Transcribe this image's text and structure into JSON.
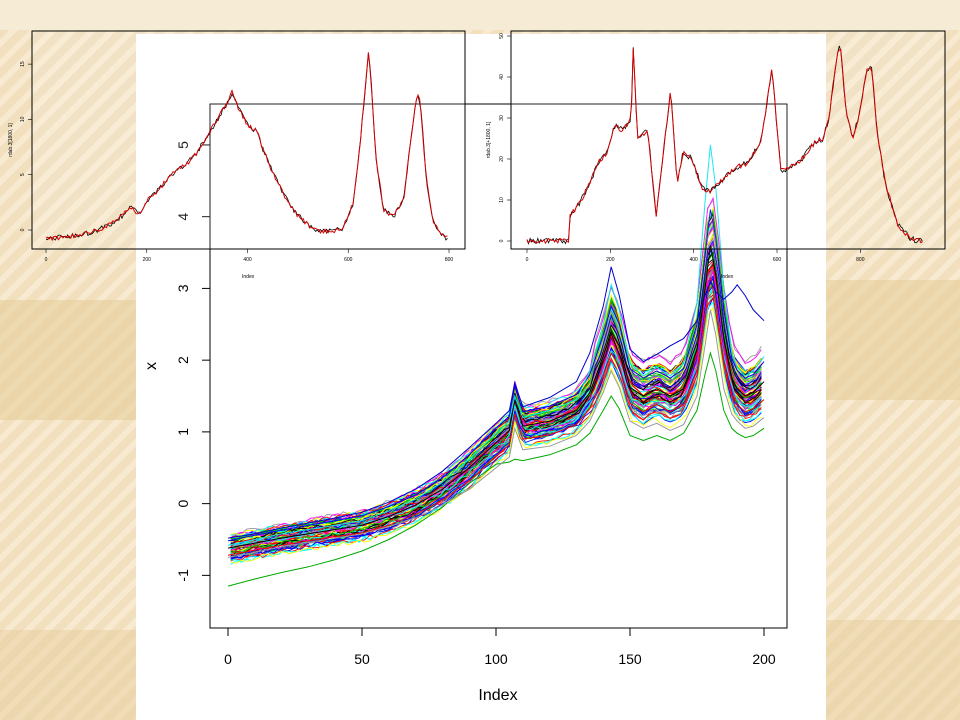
{
  "colors": {
    "slide_background": "#f3e3c3",
    "inset_line": "#d40000",
    "inset_overlay": "#000000",
    "main_series_palette": [
      "#000000",
      "#ff0000",
      "#00cc00",
      "#0000ff",
      "#00ffff",
      "#ff00ff",
      "#ffff00",
      "#999999"
    ]
  },
  "chart_data": [
    {
      "id": "main",
      "type": "line",
      "xlabel": "Index",
      "ylabel": "x",
      "xlim": [
        0,
        200
      ],
      "ylim": [
        -1.4,
        5.5
      ],
      "xticks": [
        0,
        50,
        100,
        150,
        200
      ],
      "yticks": [
        -1,
        0,
        1,
        2,
        3,
        4,
        5
      ],
      "grid": false,
      "legend": "none",
      "series_count": 100,
      "x": [
        0,
        10,
        20,
        30,
        40,
        50,
        60,
        70,
        80,
        90,
        100,
        105,
        107,
        110,
        120,
        130,
        135,
        140,
        143,
        146,
        150,
        155,
        160,
        165,
        170,
        175,
        178,
        180,
        182,
        185,
        188,
        190,
        193,
        196,
        200
      ],
      "series": [
        {
          "values": [
            -0.62,
            -0.55,
            -0.48,
            -0.42,
            -0.36,
            -0.3,
            -0.18,
            -0.02,
            0.2,
            0.5,
            0.85,
            1.02,
            1.45,
            1.08,
            1.15,
            1.3,
            1.55,
            2.05,
            2.4,
            2.2,
            1.62,
            1.5,
            1.6,
            1.5,
            1.6,
            2.15,
            3.0,
            3.6,
            3.2,
            2.3,
            1.75,
            1.6,
            1.5,
            1.55,
            1.7
          ]
        },
        {
          "values": [
            -0.52,
            -0.44,
            -0.37,
            -0.3,
            -0.24,
            -0.17,
            -0.04,
            0.12,
            0.36,
            0.68,
            1.05,
            1.22,
            1.65,
            1.28,
            1.36,
            1.52,
            1.8,
            2.35,
            2.75,
            2.5,
            1.88,
            1.75,
            1.85,
            1.75,
            1.88,
            2.5,
            3.45,
            4.1,
            3.7,
            2.7,
            2.02,
            1.86,
            1.75,
            1.8,
            1.98
          ]
        },
        {
          "values": [
            -0.72,
            -0.65,
            -0.58,
            -0.52,
            -0.46,
            -0.41,
            -0.3,
            -0.15,
            0.05,
            0.32,
            0.66,
            0.82,
            1.25,
            0.9,
            0.96,
            1.1,
            1.32,
            1.78,
            2.1,
            1.92,
            1.4,
            1.28,
            1.38,
            1.28,
            1.38,
            1.85,
            2.6,
            3.15,
            2.8,
            2.0,
            1.52,
            1.38,
            1.28,
            1.32,
            1.45
          ]
        },
        {
          "values": [
            -1.15,
            -1.05,
            -0.96,
            -0.88,
            -0.78,
            -0.66,
            -0.5,
            -0.3,
            -0.05,
            0.28,
            0.55,
            0.58,
            0.62,
            0.6,
            0.68,
            0.82,
            0.98,
            1.3,
            1.5,
            1.32,
            0.95,
            0.88,
            0.95,
            0.88,
            0.98,
            1.3,
            1.8,
            2.1,
            1.85,
            1.3,
            1.05,
            0.98,
            0.92,
            0.95,
            1.05
          ]
        },
        {
          "values": [
            -0.58,
            -0.5,
            -0.42,
            -0.36,
            -0.3,
            -0.24,
            -0.1,
            0.06,
            0.3,
            0.62,
            0.98,
            1.15,
            1.5,
            1.2,
            1.3,
            1.45,
            1.85,
            2.5,
            3.05,
            2.7,
            1.95,
            1.78,
            1.9,
            1.78,
            1.95,
            2.8,
            4.2,
            5.0,
            4.4,
            3.0,
            2.1,
            1.9,
            1.78,
            1.85,
            2.05
          ]
        },
        {
          "values": [
            -0.48,
            -0.42,
            -0.34,
            -0.27,
            -0.2,
            -0.12,
            0.02,
            0.2,
            0.45,
            0.78,
            1.12,
            1.3,
            1.68,
            1.35,
            1.48,
            1.7,
            2.1,
            2.75,
            3.3,
            2.9,
            2.15,
            1.98,
            2.08,
            2.2,
            2.3,
            2.55,
            2.9,
            3.1,
            2.95,
            2.85,
            2.95,
            3.05,
            2.9,
            2.7,
            2.55
          ]
        },
        {
          "values": [
            -0.75,
            -0.68,
            -0.6,
            -0.54,
            -0.48,
            -0.42,
            -0.32,
            -0.2,
            -0.02,
            0.2,
            0.5,
            0.65,
            1.05,
            0.75,
            0.8,
            0.95,
            1.15,
            1.55,
            1.85,
            1.62,
            1.15,
            1.05,
            1.12,
            1.02,
            1.1,
            1.5,
            2.2,
            2.7,
            2.35,
            1.6,
            1.25,
            1.15,
            1.05,
            1.08,
            1.2
          ]
        }
      ]
    },
    {
      "id": "inset-left",
      "type": "line",
      "ylabel": "rdab.3[1800, 1]",
      "xlabel": "Index",
      "xlim": [
        0,
        800
      ],
      "ylim": [
        0,
        17
      ],
      "xticks": [
        0,
        200,
        400,
        600,
        800
      ],
      "yticks": [
        0,
        5,
        10,
        15
      ],
      "x": [
        0,
        40,
        80,
        120,
        140,
        155,
        170,
        180,
        190,
        200,
        220,
        240,
        260,
        280,
        300,
        320,
        340,
        350,
        360,
        370,
        380,
        390,
        400,
        410,
        420,
        430,
        450,
        470,
        490,
        510,
        530,
        550,
        570,
        590,
        610,
        625,
        635,
        640,
        645,
        655,
        670,
        690,
        710,
        725,
        735,
        740,
        745,
        755,
        770,
        790,
        800
      ],
      "values": [
        -0.8,
        -0.6,
        -0.3,
        0.3,
        0.8,
        1.5,
        2.1,
        1.6,
        1.7,
        2.6,
        3.5,
        4.5,
        5.5,
        6.0,
        7.0,
        8.5,
        10.0,
        10.8,
        11.5,
        12.5,
        11.2,
        10.3,
        9.5,
        9.2,
        8.8,
        7.4,
        5.2,
        3.4,
        1.8,
        0.9,
        0.0,
        -0.1,
        -0.1,
        0.2,
        2.5,
        8.5,
        13.5,
        16.0,
        13.8,
        6.5,
        1.8,
        1.2,
        2.8,
        8.5,
        11.8,
        12.2,
        10.5,
        4.5,
        0.5,
        -0.6,
        -0.8
      ]
    },
    {
      "id": "inset-right",
      "type": "line",
      "ylabel": "rdab.3[+1800, 1]",
      "xlabel": "Index",
      "xlim": [
        0,
        960
      ],
      "ylim": [
        0,
        50
      ],
      "xticks": [
        0,
        200,
        400,
        600,
        800
      ],
      "yticks": [
        0,
        10,
        20,
        30,
        40,
        50
      ],
      "x": [
        0,
        100,
        101,
        110,
        130,
        150,
        170,
        190,
        210,
        230,
        250,
        255,
        265,
        290,
        310,
        330,
        345,
        360,
        375,
        395,
        420,
        440,
        470,
        500,
        530,
        560,
        578,
        588,
        598,
        610,
        630,
        660,
        690,
        710,
        725,
        742,
        752,
        765,
        782,
        800,
        815,
        828,
        840,
        860,
        890,
        920,
        950
      ],
      "values": [
        0,
        0,
        6,
        7,
        10,
        14,
        19,
        21,
        28,
        27,
        30,
        48,
        25,
        27,
        6,
        24,
        37,
        14,
        22,
        20,
        13,
        12,
        15,
        18,
        19,
        24,
        35,
        42,
        30,
        17,
        18,
        20,
        24,
        25,
        30,
        44,
        48,
        32,
        25,
        32,
        42,
        42,
        27,
        14,
        4,
        0.5,
        0
      ]
    }
  ]
}
